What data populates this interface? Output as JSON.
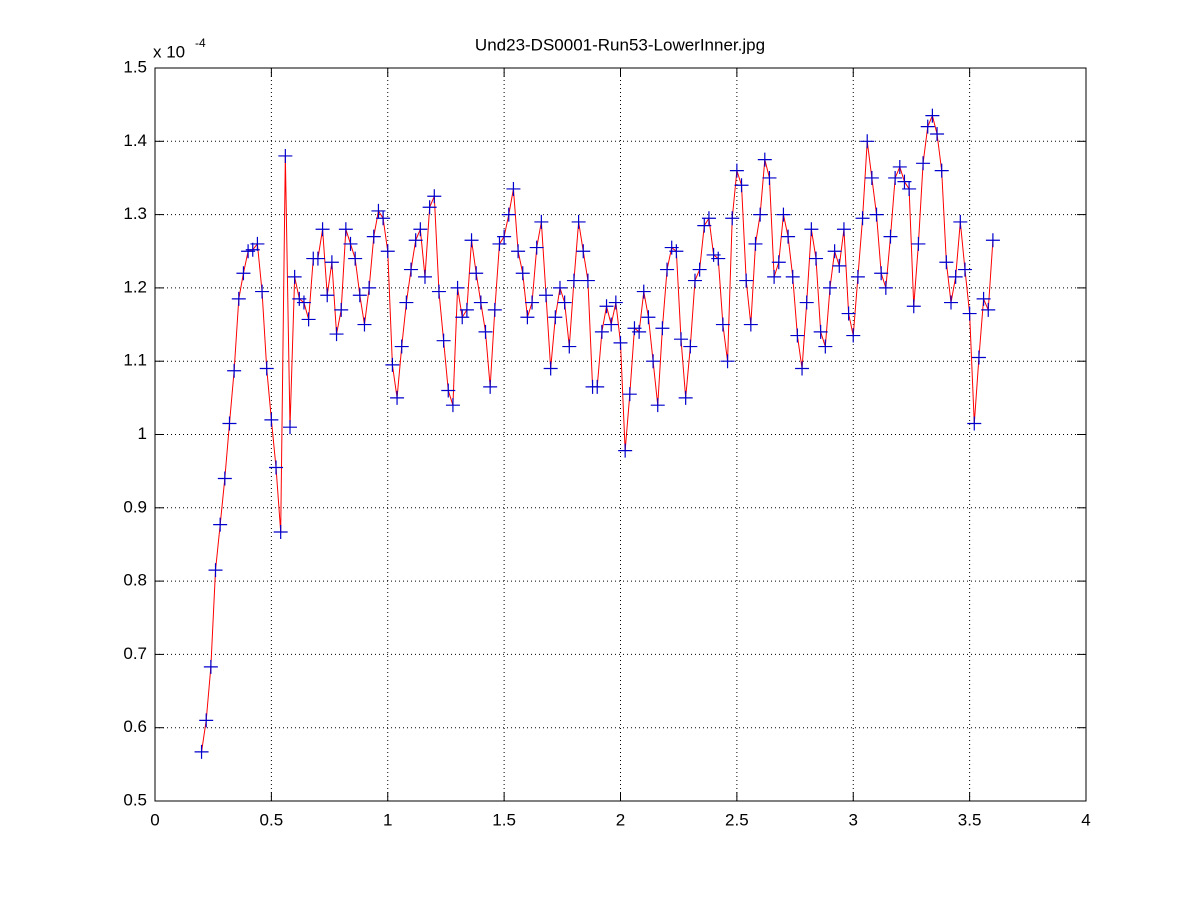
{
  "chart_data": {
    "type": "line",
    "title": "Und23-DS0001-Run53-LowerInner.jpg",
    "y_multiplier": "x 10",
    "y_exponent": -4,
    "x": [
      0.2,
      0.22,
      0.24,
      0.26,
      0.28,
      0.3,
      0.32,
      0.34,
      0.36,
      0.38,
      0.4,
      0.42,
      0.44,
      0.46,
      0.48,
      0.5,
      0.52,
      0.54,
      0.56,
      0.58,
      0.6,
      0.62,
      0.64,
      0.66,
      0.68,
      0.7,
      0.72,
      0.74,
      0.76,
      0.78,
      0.8,
      0.82,
      0.84,
      0.86,
      0.88,
      0.9,
      0.92,
      0.94,
      0.96,
      0.98,
      1.0,
      1.02,
      1.04,
      1.06,
      1.08,
      1.1,
      1.12,
      1.14,
      1.16,
      1.18,
      1.2,
      1.22,
      1.24,
      1.26,
      1.28,
      1.3,
      1.32,
      1.34,
      1.36,
      1.38,
      1.4,
      1.42,
      1.44,
      1.46,
      1.48,
      1.5,
      1.52,
      1.54,
      1.56,
      1.58,
      1.6,
      1.62,
      1.64,
      1.66,
      1.68,
      1.7,
      1.72,
      1.74,
      1.76,
      1.78,
      1.8,
      1.82,
      1.84,
      1.86,
      1.88,
      1.9,
      1.92,
      1.94,
      1.96,
      1.98,
      2.0,
      2.02,
      2.04,
      2.06,
      2.08,
      2.1,
      2.12,
      2.14,
      2.16,
      2.18,
      2.2,
      2.22,
      2.24,
      2.26,
      2.28,
      2.3,
      2.32,
      2.34,
      2.36,
      2.38,
      2.4,
      2.42,
      2.44,
      2.46,
      2.48,
      2.5,
      2.52,
      2.54,
      2.56,
      2.58,
      2.6,
      2.62,
      2.64,
      2.66,
      2.68,
      2.7,
      2.72,
      2.74,
      2.76,
      2.78,
      2.8,
      2.82,
      2.84,
      2.86,
      2.88,
      2.9,
      2.92,
      2.94,
      2.96,
      2.98,
      3.0,
      3.02,
      3.04,
      3.06,
      3.08,
      3.1,
      3.12,
      3.14,
      3.16,
      3.18,
      3.2,
      3.22,
      3.24,
      3.26,
      3.28,
      3.3,
      3.32,
      3.34,
      3.36,
      3.38,
      3.4,
      3.42,
      3.44,
      3.46,
      3.48,
      3.5,
      3.52,
      3.54,
      3.56,
      3.58,
      3.6
    ],
    "values": [
      0.567,
      0.61,
      0.683,
      0.815,
      0.877,
      0.94,
      1.015,
      1.087,
      1.185,
      1.22,
      1.25,
      1.252,
      1.26,
      1.195,
      1.09,
      1.02,
      0.955,
      0.867,
      1.38,
      1.01,
      1.215,
      1.185,
      1.18,
      1.157,
      1.24,
      1.24,
      1.28,
      1.19,
      1.235,
      1.137,
      1.17,
      1.28,
      1.26,
      1.24,
      1.19,
      1.15,
      1.2,
      1.27,
      1.305,
      1.295,
      1.25,
      1.095,
      1.05,
      1.12,
      1.18,
      1.225,
      1.265,
      1.28,
      1.215,
      1.31,
      1.325,
      1.195,
      1.128,
      1.06,
      1.04,
      1.2,
      1.16,
      1.17,
      1.265,
      1.22,
      1.18,
      1.14,
      1.065,
      1.17,
      1.26,
      1.27,
      1.3,
      1.335,
      1.25,
      1.22,
      1.16,
      1.18,
      1.255,
      1.29,
      1.19,
      1.09,
      1.16,
      1.2,
      1.18,
      1.12,
      1.21,
      1.29,
      1.25,
      1.21,
      1.065,
      1.065,
      1.14,
      1.175,
      1.15,
      1.18,
      1.125,
      0.978,
      1.055,
      1.145,
      1.14,
      1.195,
      1.16,
      1.1,
      1.04,
      1.145,
      1.225,
      1.255,
      1.25,
      1.13,
      1.05,
      1.12,
      1.21,
      1.225,
      1.285,
      1.295,
      1.245,
      1.24,
      1.15,
      1.1,
      1.295,
      1.36,
      1.34,
      1.21,
      1.15,
      1.26,
      1.3,
      1.375,
      1.35,
      1.215,
      1.235,
      1.3,
      1.27,
      1.215,
      1.135,
      1.09,
      1.18,
      1.28,
      1.24,
      1.14,
      1.12,
      1.2,
      1.25,
      1.23,
      1.28,
      1.165,
      1.135,
      1.215,
      1.295,
      1.4,
      1.35,
      1.3,
      1.22,
      1.2,
      1.27,
      1.35,
      1.365,
      1.345,
      1.335,
      1.175,
      1.26,
      1.37,
      1.42,
      1.435,
      1.41,
      1.36,
      1.235,
      1.18,
      1.215,
      1.29,
      1.225,
      1.165,
      1.015,
      1.105,
      1.185,
      1.17,
      1.265
    ],
    "line_color": "#ff0000",
    "marker_color": "#0000cc",
    "marker": "+",
    "xlim": [
      0,
      4
    ],
    "xticks": [
      0,
      0.5,
      1,
      1.5,
      2,
      2.5,
      3,
      3.5,
      4
    ],
    "ylim": [
      0.5,
      1.5
    ],
    "yticks": [
      0.5,
      0.6,
      0.7,
      0.8,
      0.9,
      1,
      1.1,
      1.2,
      1.3,
      1.4,
      1.5
    ],
    "grid": true
  }
}
